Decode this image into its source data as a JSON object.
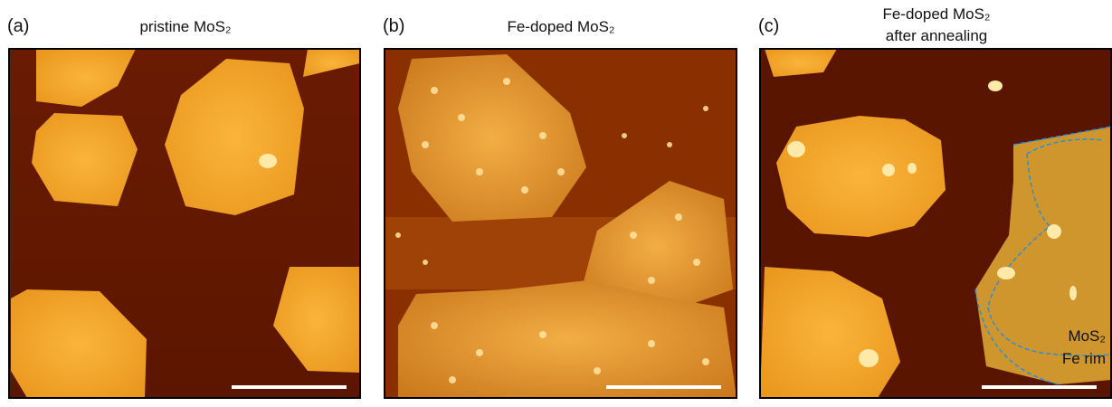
{
  "panels": [
    {
      "label": "(a)",
      "title": "pristine MoS₂"
    },
    {
      "label": "(b)",
      "title": "Fe-doped MoS₂"
    },
    {
      "label": "(c)",
      "title": "Fe-doped MoS₂",
      "subtitle": "after annealing",
      "annotations": [
        "MoS₂",
        "Fe rim"
      ]
    }
  ]
}
